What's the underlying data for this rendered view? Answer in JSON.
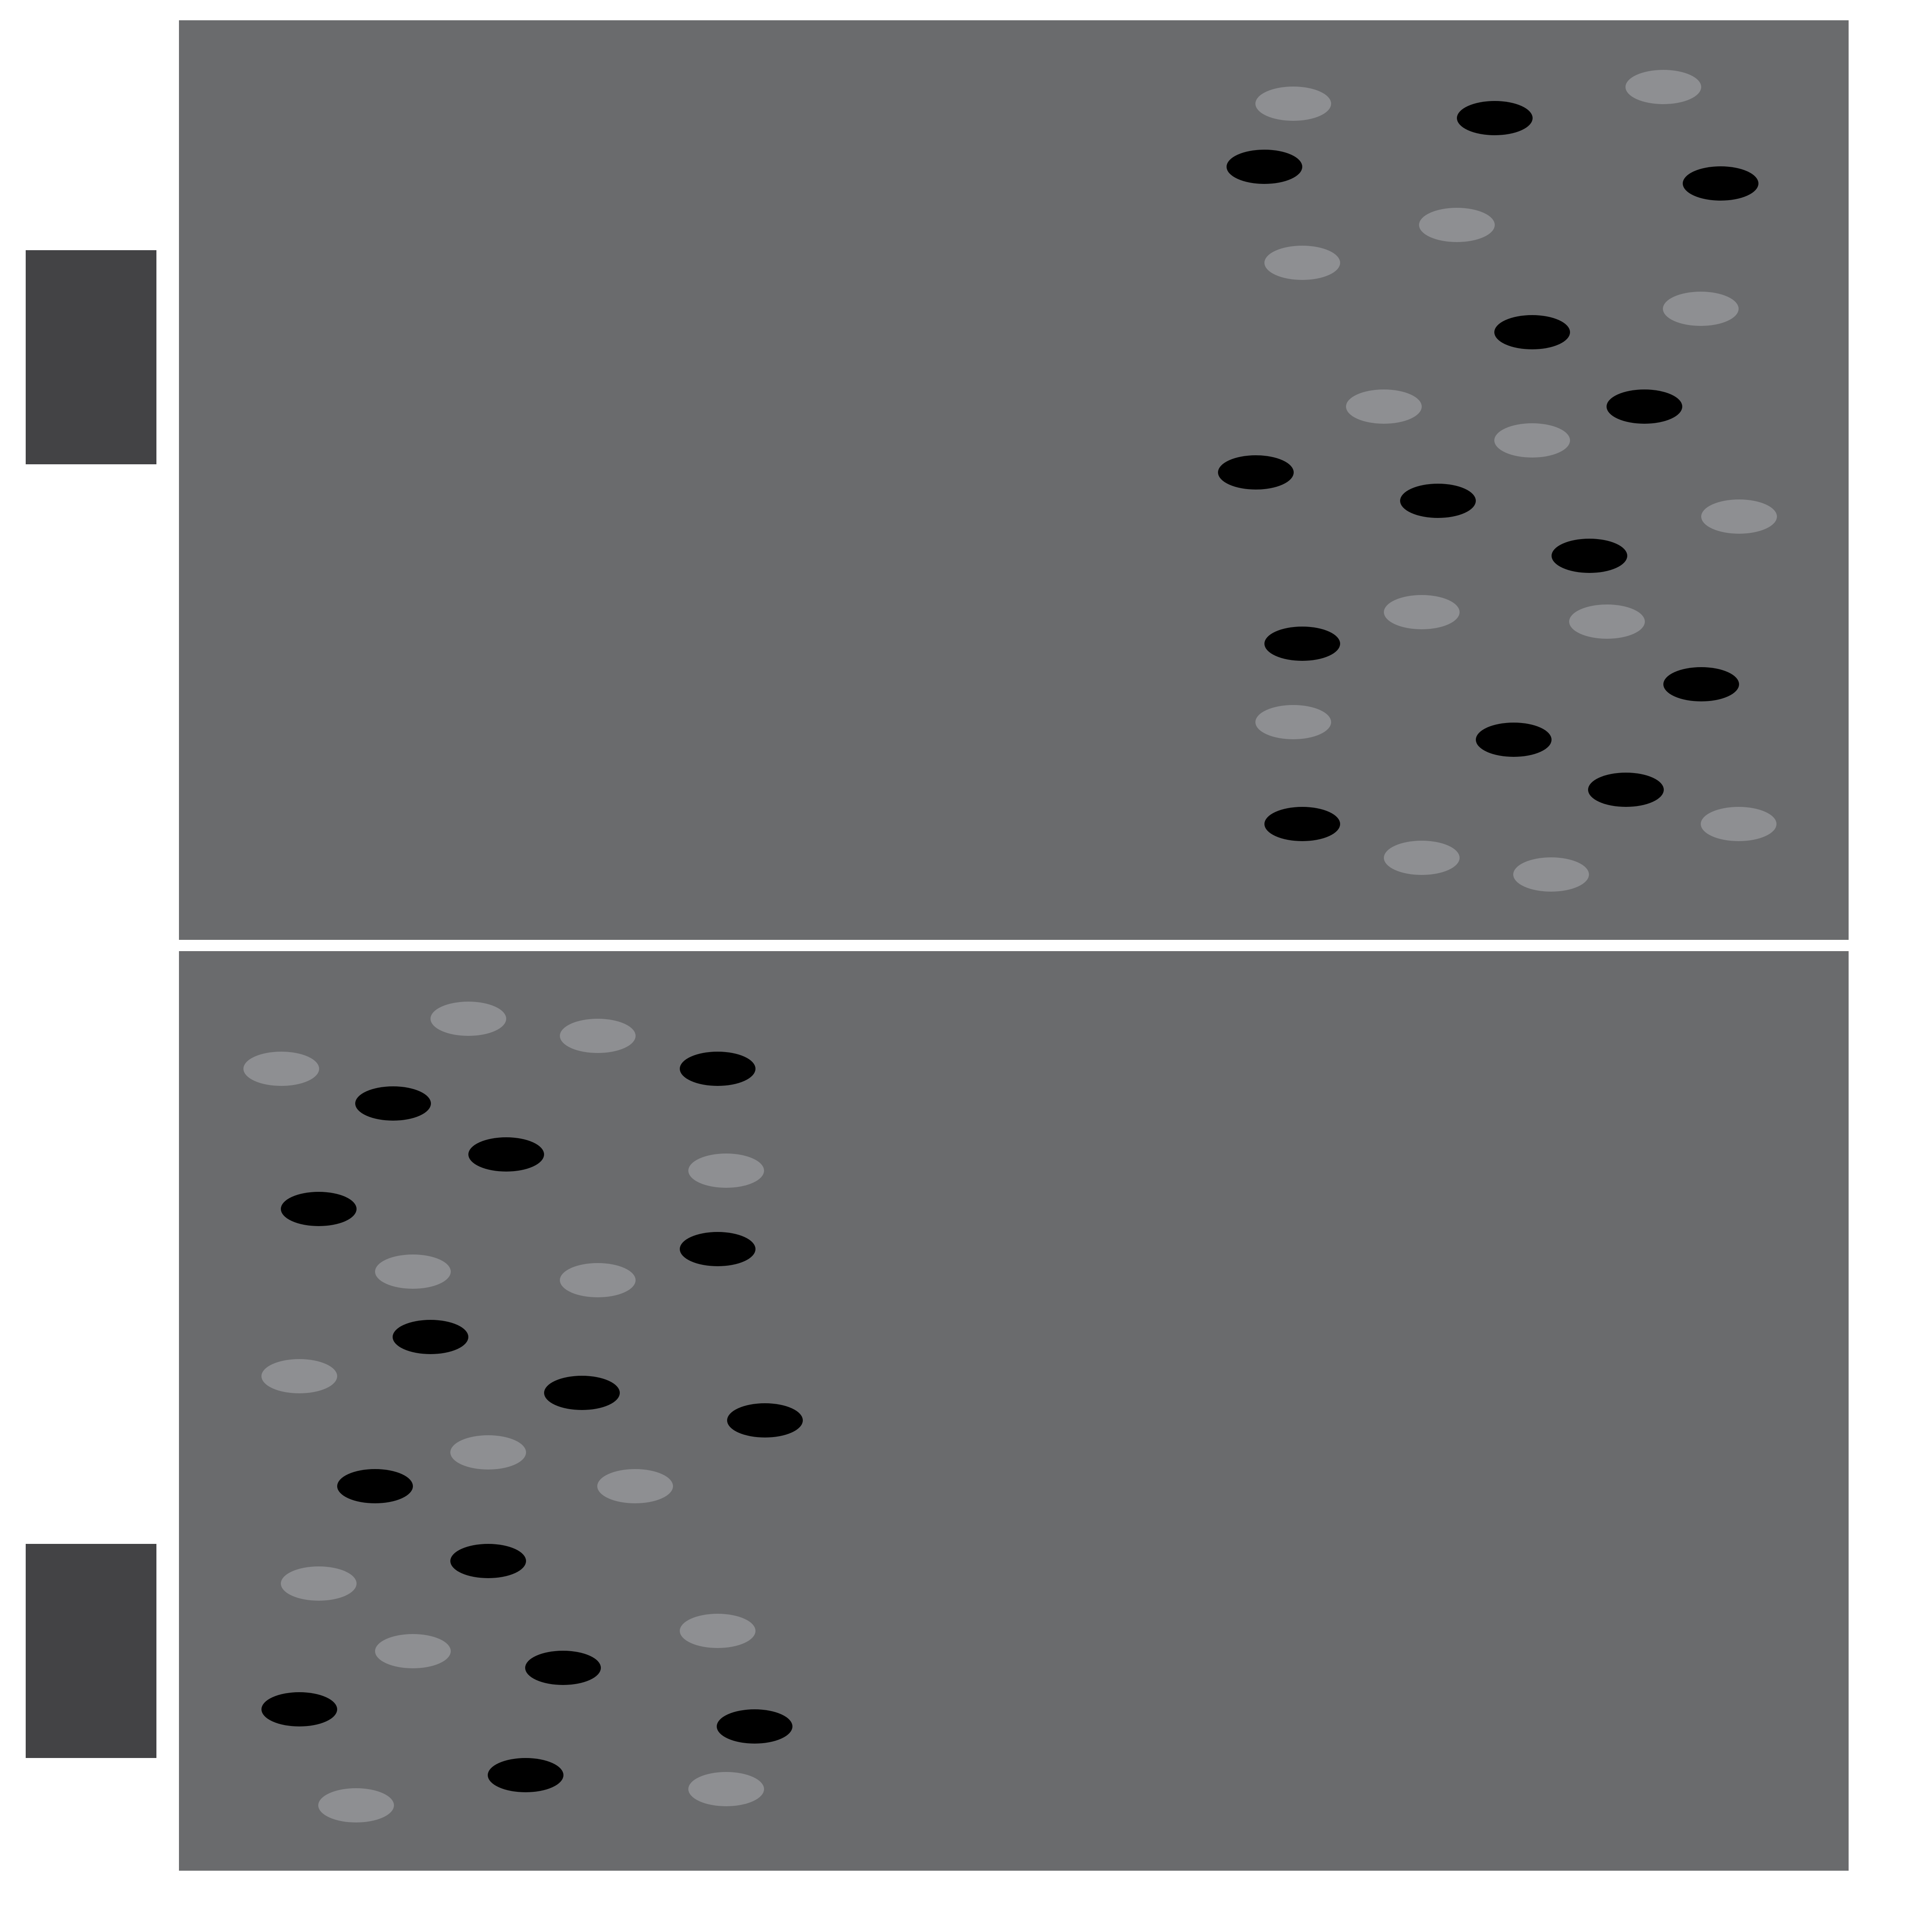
{
  "colors": {
    "background": "#ffffff",
    "panel": "#6a6b6d",
    "dot_light": "#8e8f92",
    "dot_dark": "#000000",
    "side_block": "#434345"
  },
  "panels": [
    {
      "id": "panel-top",
      "dot_cluster_side": "right",
      "dots": [
        {
          "shade": "light"
        },
        {
          "shade": "dark"
        },
        {
          "shade": "light"
        },
        {
          "shade": "dark"
        },
        {
          "shade": "dark"
        },
        {
          "shade": "light"
        },
        {
          "shade": "light"
        },
        {
          "shade": "dark"
        },
        {
          "shade": "light"
        },
        {
          "shade": "dark"
        },
        {
          "shade": "light"
        },
        {
          "shade": "dark"
        },
        {
          "shade": "light"
        },
        {
          "shade": "dark"
        },
        {
          "shade": "light"
        },
        {
          "shade": "dark"
        },
        {
          "shade": "light"
        },
        {
          "shade": "dark"
        },
        {
          "shade": "light"
        },
        {
          "shade": "dark"
        },
        {
          "shade": "light"
        },
        {
          "shade": "dark"
        },
        {
          "shade": "dark"
        },
        {
          "shade": "dark"
        },
        {
          "shade": "light"
        },
        {
          "shade": "light"
        },
        {
          "shade": "light"
        }
      ]
    },
    {
      "id": "panel-bottom",
      "dot_cluster_side": "left",
      "dots": [
        {
          "shade": "light"
        },
        {
          "shade": "light"
        },
        {
          "shade": "light"
        },
        {
          "shade": "dark"
        },
        {
          "shade": "dark"
        },
        {
          "shade": "dark"
        },
        {
          "shade": "light"
        },
        {
          "shade": "dark"
        },
        {
          "shade": "dark"
        },
        {
          "shade": "light"
        },
        {
          "shade": "light"
        },
        {
          "shade": "dark"
        },
        {
          "shade": "light"
        },
        {
          "shade": "dark"
        },
        {
          "shade": "dark"
        },
        {
          "shade": "light"
        },
        {
          "shade": "dark"
        },
        {
          "shade": "light"
        },
        {
          "shade": "dark"
        },
        {
          "shade": "light"
        },
        {
          "shade": "light"
        },
        {
          "shade": "light"
        },
        {
          "shade": "dark"
        },
        {
          "shade": "dark"
        },
        {
          "shade": "dark"
        },
        {
          "shade": "dark"
        },
        {
          "shade": "light"
        },
        {
          "shade": "light"
        }
      ]
    }
  ],
  "side_blocks": [
    {
      "id": "side-block-top"
    },
    {
      "id": "side-block-bottom"
    }
  ]
}
